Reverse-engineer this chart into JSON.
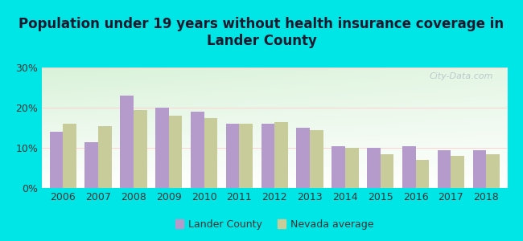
{
  "title": "Population under 19 years without health insurance coverage in\nLander County",
  "years": [
    2006,
    2007,
    2008,
    2009,
    2010,
    2011,
    2012,
    2013,
    2014,
    2015,
    2016,
    2017,
    2018
  ],
  "lander": [
    14,
    11.5,
    23,
    20,
    19,
    16,
    16,
    15,
    10.5,
    10,
    10.5,
    9.5,
    9.5
  ],
  "nevada": [
    16,
    15.5,
    19.5,
    18,
    17.5,
    16,
    16.5,
    14.5,
    10,
    8.5,
    7,
    8,
    8.5
  ],
  "lander_color": "#b59bcc",
  "nevada_color": "#c8cc9b",
  "background_outer": "#00e5e5",
  "ylim": [
    0,
    30
  ],
  "yticks": [
    0,
    10,
    20,
    30
  ],
  "ytick_labels": [
    "0%",
    "10%",
    "20%",
    "30%"
  ],
  "bar_width": 0.38,
  "legend_lander": "Lander County",
  "legend_nevada": "Nevada average",
  "title_fontsize": 12,
  "tick_fontsize": 9,
  "legend_fontsize": 9,
  "title_color": "#1a1a2e",
  "watermark_color": "#b0bec5"
}
